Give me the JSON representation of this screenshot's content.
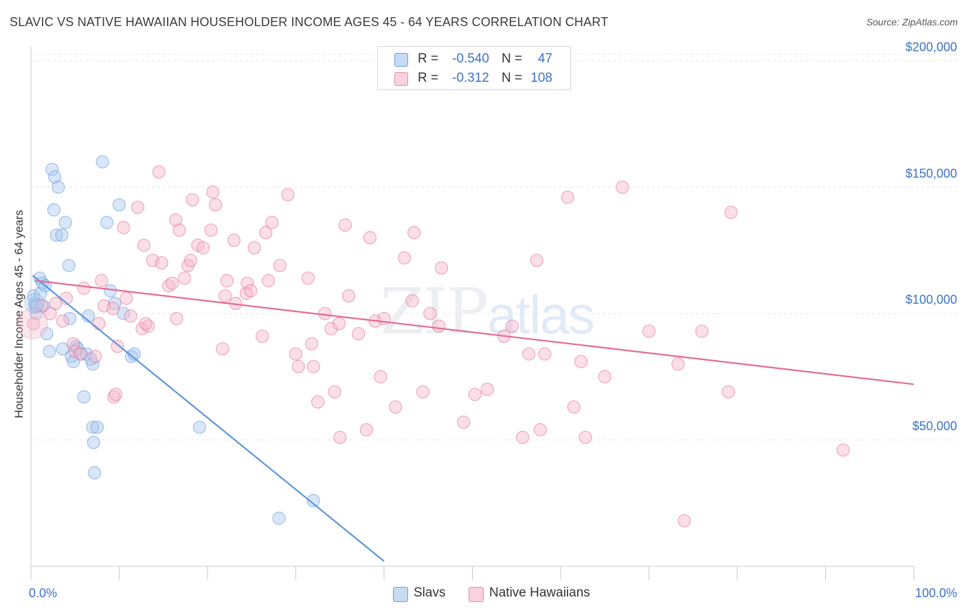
{
  "title": "SLAVIC VS NATIVE HAWAIIAN HOUSEHOLDER INCOME AGES 45 - 64 YEARS CORRELATION CHART",
  "source": "Source: ZipAtlas.com",
  "watermark": {
    "zip": "ZIP",
    "atlas": "atlas"
  },
  "legend": {
    "rows": [
      {
        "r_label": "R =",
        "r_value": "-0.540",
        "n_label": "N =",
        "n_value": "47",
        "color": "#a9c8f0"
      },
      {
        "r_label": "R =",
        "r_value": "-0.312",
        "n_label": "N =",
        "n_value": "108",
        "color": "#f6b8ca"
      }
    ]
  },
  "bottom_legend": [
    {
      "label": "Slavs",
      "color": "#a9c8f0"
    },
    {
      "label": "Native Hawaiians",
      "color": "#f6b8ca"
    }
  ],
  "chart_data": {
    "type": "scatter",
    "title": "SLAVIC VS NATIVE HAWAIIAN HOUSEHOLDER INCOME AGES 45 - 64 YEARS CORRELATION CHART",
    "xlabel": "",
    "ylabel": "Householder Income Ages 45 - 64 years",
    "xlim": [
      0,
      100
    ],
    "ylim": [
      0,
      205000
    ],
    "x_tick_labels": [
      "0.0%",
      "100.0%"
    ],
    "y_ticks": [
      50000,
      100000,
      150000,
      200000
    ],
    "y_tick_labels": [
      "$50,000",
      "$100,000",
      "$150,000",
      "$200,000"
    ],
    "grid": true,
    "legend_position": "top-center",
    "series": [
      {
        "name": "Slavs",
        "color": "#5b95dc",
        "fill": "#a9c8f0",
        "trend": {
          "x": [
            0.2,
            40
          ],
          "y": [
            115000,
            2000
          ]
        },
        "points": [
          [
            0.3,
            107000
          ],
          [
            0.4,
            104000
          ],
          [
            0.5,
            103000
          ],
          [
            0.6,
            100000
          ],
          [
            0.7,
            103000
          ],
          [
            1.0,
            114000
          ],
          [
            1.1,
            108000
          ],
          [
            1.3,
            112000
          ],
          [
            1.4,
            103000
          ],
          [
            1.6,
            111000
          ],
          [
            1.8,
            92000
          ],
          [
            2.4,
            157000
          ],
          [
            2.6,
            141000
          ],
          [
            2.7,
            154000
          ],
          [
            2.9,
            131000
          ],
          [
            3.1,
            150000
          ],
          [
            3.5,
            131000
          ],
          [
            3.6,
            86000
          ],
          [
            3.9,
            136000
          ],
          [
            4.3,
            119000
          ],
          [
            4.4,
            98000
          ],
          [
            4.6,
            83000
          ],
          [
            5.1,
            87000
          ],
          [
            5.3,
            86000
          ],
          [
            5.7,
            84000
          ],
          [
            6.0,
            67000
          ],
          [
            6.3,
            84000
          ],
          [
            6.5,
            99000
          ],
          [
            7.0,
            55000
          ],
          [
            7.1,
            49000
          ],
          [
            7.2,
            37000
          ],
          [
            7.5,
            55000
          ],
          [
            7.0,
            80000
          ],
          [
            6.8,
            82000
          ],
          [
            8.1,
            160000
          ],
          [
            8.6,
            136000
          ],
          [
            9.0,
            109000
          ],
          [
            9.5,
            104000
          ],
          [
            10.0,
            143000
          ],
          [
            10.5,
            100000
          ],
          [
            11.4,
            83000
          ],
          [
            11.7,
            84000
          ],
          [
            19.1,
            55000
          ],
          [
            28.1,
            19000
          ],
          [
            32.0,
            26000
          ],
          [
            4.8,
            81000
          ],
          [
            2.1,
            85000
          ]
        ]
      },
      {
        "name": "Native Hawaiians",
        "color": "#e36a93",
        "fill": "#f6b8ca",
        "trend": {
          "x": [
            0.5,
            100
          ],
          "y": [
            113000,
            72000
          ]
        },
        "points": [
          [
            0.3,
            96000
          ],
          [
            1.2,
            103000
          ],
          [
            2.2,
            100000
          ],
          [
            2.8,
            104000
          ],
          [
            3.6,
            97000
          ],
          [
            4.0,
            106000
          ],
          [
            4.8,
            88000
          ],
          [
            5.0,
            85000
          ],
          [
            5.6,
            84000
          ],
          [
            6.0,
            110000
          ],
          [
            7.3,
            83000
          ],
          [
            7.7,
            96000
          ],
          [
            8.0,
            113000
          ],
          [
            8.3,
            103000
          ],
          [
            9.3,
            102000
          ],
          [
            9.4,
            67000
          ],
          [
            9.6,
            68000
          ],
          [
            9.8,
            87000
          ],
          [
            10.5,
            134000
          ],
          [
            10.8,
            106000
          ],
          [
            11.3,
            99000
          ],
          [
            12.1,
            142000
          ],
          [
            12.6,
            94000
          ],
          [
            12.8,
            127000
          ],
          [
            13.3,
            95000
          ],
          [
            13.8,
            121000
          ],
          [
            14.5,
            156000
          ],
          [
            14.8,
            120000
          ],
          [
            15.6,
            111000
          ],
          [
            16.0,
            112000
          ],
          [
            16.5,
            98000
          ],
          [
            16.4,
            137000
          ],
          [
            16.8,
            133000
          ],
          [
            17.4,
            114000
          ],
          [
            17.8,
            119000
          ],
          [
            18.1,
            121000
          ],
          [
            18.3,
            145000
          ],
          [
            18.9,
            127000
          ],
          [
            19.5,
            126000
          ],
          [
            20.4,
            133000
          ],
          [
            20.6,
            148000
          ],
          [
            20.9,
            143000
          ],
          [
            22.2,
            113000
          ],
          [
            22.0,
            107000
          ],
          [
            23.0,
            129000
          ],
          [
            23.2,
            104000
          ],
          [
            24.4,
            108000
          ],
          [
            24.5,
            112000
          ],
          [
            24.9,
            109000
          ],
          [
            25.3,
            126000
          ],
          [
            26.2,
            91000
          ],
          [
            26.6,
            132000
          ],
          [
            26.9,
            113000
          ],
          [
            27.3,
            136000
          ],
          [
            28.2,
            119000
          ],
          [
            29.1,
            147000
          ],
          [
            30.0,
            84000
          ],
          [
            30.3,
            79000
          ],
          [
            31.4,
            114000
          ],
          [
            31.8,
            88000
          ],
          [
            32.0,
            79000
          ],
          [
            32.5,
            65000
          ],
          [
            33.3,
            100000
          ],
          [
            34.0,
            94000
          ],
          [
            34.4,
            69000
          ],
          [
            35.0,
            51000
          ],
          [
            35.6,
            135000
          ],
          [
            36.0,
            107000
          ],
          [
            37.1,
            92000
          ],
          [
            38.0,
            54000
          ],
          [
            38.4,
            130000
          ],
          [
            39.0,
            97000
          ],
          [
            39.6,
            75000
          ],
          [
            40.0,
            98000
          ],
          [
            41.3,
            63000
          ],
          [
            42.3,
            122000
          ],
          [
            43.2,
            105000
          ],
          [
            43.4,
            132000
          ],
          [
            44.4,
            69000
          ],
          [
            45.2,
            100000
          ],
          [
            46.2,
            95000
          ],
          [
            46.5,
            118000
          ],
          [
            49.0,
            57000
          ],
          [
            50.3,
            68000
          ],
          [
            51.7,
            70000
          ],
          [
            53.6,
            91000
          ],
          [
            54.5,
            95000
          ],
          [
            55.7,
            51000
          ],
          [
            57.3,
            121000
          ],
          [
            57.7,
            54000
          ],
          [
            58.2,
            84000
          ],
          [
            60.8,
            146000
          ],
          [
            61.5,
            63000
          ],
          [
            62.3,
            81000
          ],
          [
            62.8,
            51000
          ],
          [
            65.0,
            75000
          ],
          [
            67.0,
            150000
          ],
          [
            70.0,
            93000
          ],
          [
            73.3,
            80000
          ],
          [
            74.0,
            18000
          ],
          [
            76.0,
            93000
          ],
          [
            79.0,
            69000
          ],
          [
            79.3,
            140000
          ],
          [
            92.0,
            46000
          ],
          [
            13.0,
            96000
          ],
          [
            21.7,
            86000
          ],
          [
            34.9,
            96000
          ],
          [
            56.4,
            84000
          ]
        ]
      }
    ]
  }
}
